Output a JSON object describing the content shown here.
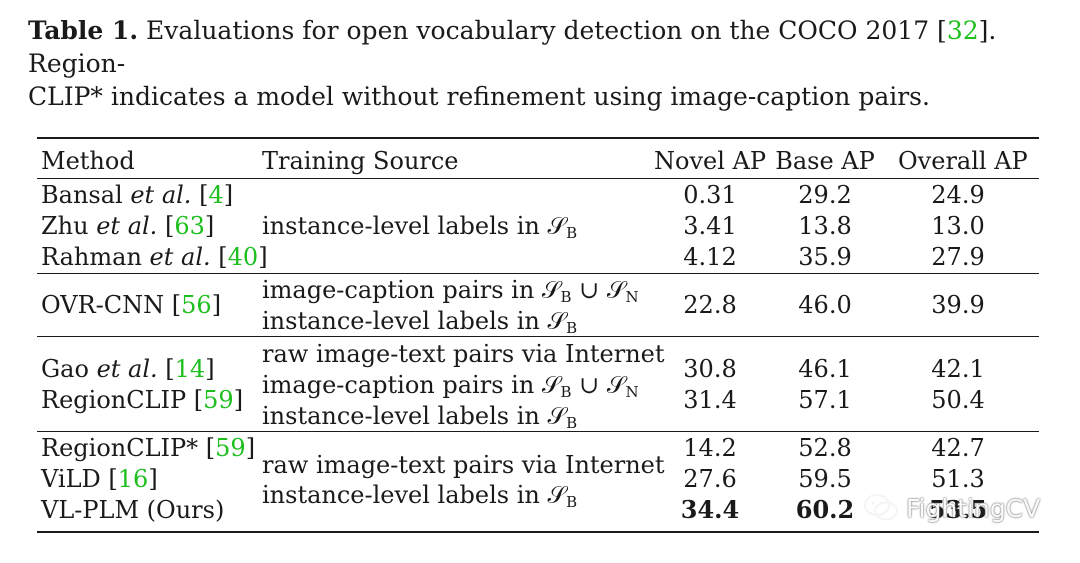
{
  "caption": {
    "label": "Table 1.",
    "text_1": " Evaluations for open vocabulary detection on the COCO 2017 [",
    "ref": "32",
    "text_2": "]. Region-",
    "line_2": "CLIP* indicates a model without refinement using image-caption pairs."
  },
  "table": {
    "headers": {
      "method": "Method",
      "source": "Training Source",
      "novel": "Novel AP",
      "base": "Base AP",
      "overall": "Overall AP"
    },
    "groups": [
      {
        "rows": [
          {
            "method_pre": "Bansal ",
            "method_it": "et al.",
            "method_post": " [",
            "ref": "4",
            "close": "]",
            "novel": "0.31",
            "base": "29.2",
            "overall": "24.9"
          },
          {
            "method_pre": "Zhu ",
            "method_it": "et al.",
            "method_post": " [",
            "ref": "63",
            "close": "]",
            "novel": "3.41",
            "base": "13.8",
            "overall": "13.0"
          },
          {
            "method_pre": "Rahman ",
            "method_it": "et al.",
            "method_post": " [",
            "ref": "40",
            "close": "]",
            "novel": "4.12",
            "base": "35.9",
            "overall": "27.9"
          }
        ],
        "source_lines": [
          "instance-level labels in 𝒮",
          "B"
        ]
      },
      {
        "rows": [
          {
            "method_pre": "OVR-CNN",
            "method_it": "",
            "method_post": " [",
            "ref": "56",
            "close": "]",
            "novel": "22.8",
            "base": "46.0",
            "overall": "39.9"
          }
        ],
        "source_lines": [
          "image-caption pairs in 𝒮",
          "instance-level labels in 𝒮"
        ]
      },
      {
        "rows": [
          {
            "method_pre": "Gao ",
            "method_it": "et al.",
            "method_post": " [",
            "ref": "14",
            "close": "]",
            "novel": "30.8",
            "base": "46.1",
            "overall": "42.1"
          },
          {
            "method_pre": "RegionCLIP",
            "method_it": "",
            "method_post": " [",
            "ref": "59",
            "close": "]",
            "novel": "31.4",
            "base": "57.1",
            "overall": "50.4"
          }
        ],
        "source_lines": [
          "raw image-text pairs via Internet",
          "image-caption pairs in 𝒮",
          "instance-level labels in 𝒮"
        ]
      },
      {
        "rows": [
          {
            "method_pre": "RegionCLIP*",
            "method_it": "",
            "method_post": " [",
            "ref": "59",
            "close": "]",
            "novel": "14.2",
            "base": "52.8",
            "overall": "42.7"
          },
          {
            "method_pre": "ViLD",
            "method_it": "",
            "method_post": " [",
            "ref": "16",
            "close": "]",
            "novel": "27.6",
            "base": "59.5",
            "overall": "51.3"
          },
          {
            "method_pre": "VL-PLM (Ours)",
            "method_it": "",
            "method_post": "",
            "ref": "",
            "close": "",
            "novel": "34.4",
            "base": "60.2",
            "overall": "53.5"
          }
        ],
        "source_lines": [
          "raw image-text pairs via Internet",
          "instance-level labels in 𝒮"
        ]
      }
    ],
    "math": {
      "script_s": "𝒮",
      "sub_b": "B",
      "sub_n": "N",
      "union": " ∪ "
    }
  },
  "watermark": {
    "text": "FightingCV",
    "icon": "wechat-icon"
  },
  "colors": {
    "reference": "#1fbf1f",
    "text": "#1a1a1a"
  }
}
